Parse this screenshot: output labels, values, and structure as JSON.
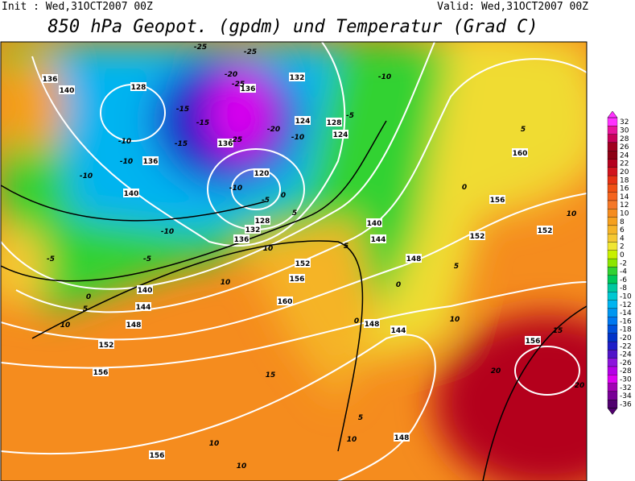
{
  "header": {
    "init": "Init : Wed,31OCT2007 00Z",
    "valid": "Valid: Wed,31OCT2007 00Z",
    "title": "850 hPa Geopot. (gpdm) und Temperatur (Grad C)"
  },
  "map": {
    "geopotential_labels": [
      136,
      140,
      128,
      132,
      136,
      124,
      128,
      124,
      136,
      140,
      136,
      120,
      128,
      132,
      136,
      140,
      144,
      148,
      152,
      156,
      160,
      156,
      152,
      140,
      144,
      148,
      152,
      156,
      160,
      152,
      156,
      148,
      156,
      144,
      148
    ],
    "temperature_labels": [
      -25,
      -25,
      -20,
      -25,
      -15,
      -15,
      -20,
      -25,
      -15,
      -10,
      -10,
      -10,
      -10,
      -5,
      -10,
      0,
      -5,
      -10,
      -5,
      -5,
      -10,
      0,
      5,
      10,
      10,
      10,
      5,
      0,
      5,
      10,
      15,
      20,
      20,
      15,
      10,
      10,
      5,
      10,
      10,
      5,
      0,
      5,
      0
    ]
  },
  "colorbar": {
    "labels": [
      32,
      30,
      28,
      26,
      24,
      22,
      20,
      18,
      16,
      14,
      12,
      10,
      8,
      6,
      4,
      2,
      0,
      -2,
      -4,
      -6,
      -8,
      -10,
      -12,
      -14,
      -16,
      -18,
      -20,
      -22,
      -24,
      -26,
      -28,
      -30,
      -32,
      -34,
      -36
    ],
    "colors": [
      "#ff33ff",
      "#e8149b",
      "#c8005a",
      "#a00020",
      "#8c0014",
      "#b4001e",
      "#d2141e",
      "#e63214",
      "#f05014",
      "#f5641e",
      "#f57828",
      "#f58c1e",
      "#f5a01e",
      "#f5b428",
      "#f5c832",
      "#f0e632",
      "#c8f000",
      "#8ce600",
      "#32d232",
      "#00c85a",
      "#00c8a0",
      "#00c8d2",
      "#00b4f0",
      "#0096f0",
      "#0078f0",
      "#0050dc",
      "#0032c8",
      "#1e1ec8",
      "#5014c8",
      "#8c14dc",
      "#b400e6",
      "#dc00f0",
      "#a000b4",
      "#780096",
      "#50006e"
    ]
  }
}
